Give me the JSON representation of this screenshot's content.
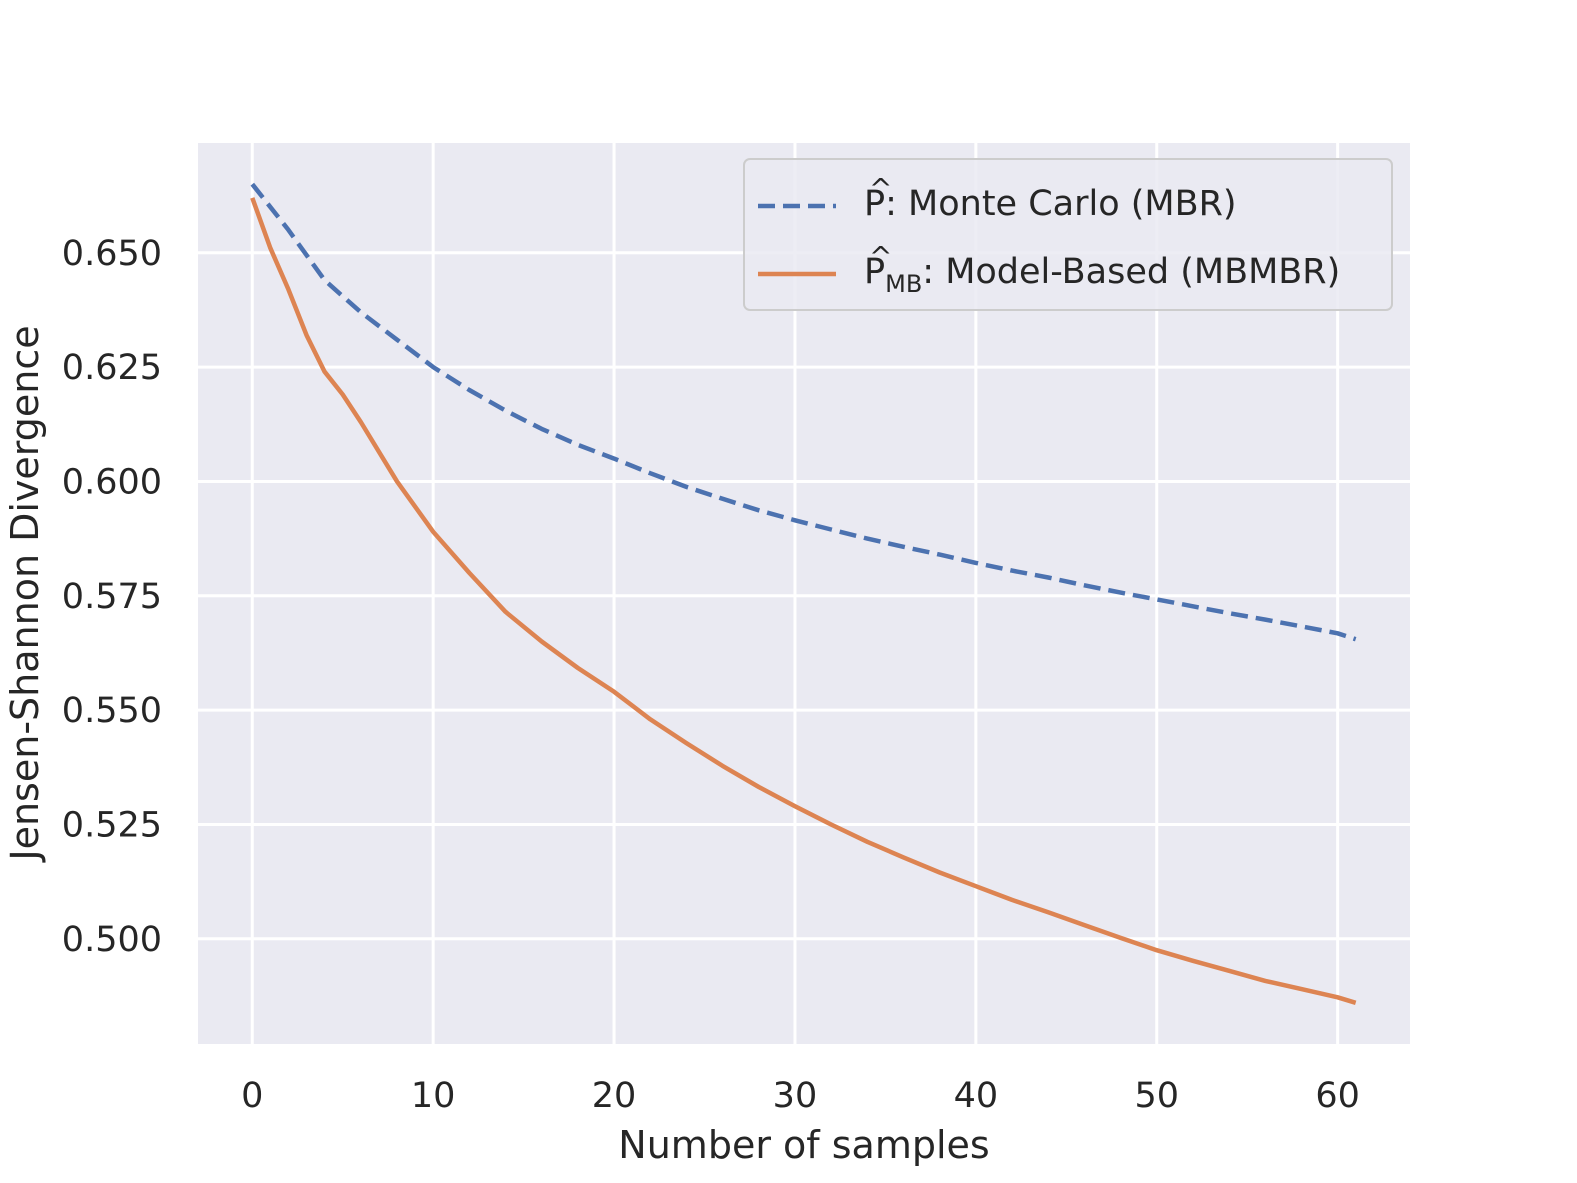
{
  "chart_data": {
    "type": "line",
    "xlabel": "Number of samples",
    "ylabel": "Jensen-Shannon Divergence",
    "xlim": [
      -3,
      64
    ],
    "ylim": [
      0.477,
      0.674
    ],
    "xticks": [
      0,
      10,
      20,
      30,
      40,
      50,
      60
    ],
    "yticks": [
      0.5,
      0.525,
      0.55,
      0.575,
      0.6,
      0.625,
      0.65
    ],
    "xtick_labels": [
      "0",
      "10",
      "20",
      "30",
      "40",
      "50",
      "60"
    ],
    "ytick_labels": [
      "0.500",
      "0.525",
      "0.550",
      "0.575",
      "0.600",
      "0.625",
      "0.650"
    ],
    "grid": true,
    "legend_position": "top-right",
    "background": "#eaeaf2",
    "series": [
      {
        "name": "P: Monte Carlo (MBR)",
        "legend_hat": "^",
        "legend_main": "P",
        "legend_sub": "",
        "legend_rest": ": Monte Carlo (MBR)",
        "color": "#4c72b0",
        "style": "dashed",
        "x": [
          0,
          2,
          4,
          6,
          8,
          10,
          12,
          14,
          16,
          18,
          20,
          22,
          24,
          26,
          28,
          30,
          32,
          34,
          36,
          38,
          40,
          42,
          44,
          46,
          48,
          50,
          52,
          54,
          56,
          58,
          60,
          61
        ],
        "y": [
          0.665,
          0.655,
          0.644,
          0.637,
          0.631,
          0.625,
          0.62,
          0.6155,
          0.6115,
          0.608,
          0.605,
          0.6018,
          0.5988,
          0.5962,
          0.5937,
          0.5915,
          0.5895,
          0.5875,
          0.5857,
          0.584,
          0.5822,
          0.5805,
          0.579,
          0.5773,
          0.5757,
          0.5742,
          0.5727,
          0.5712,
          0.5698,
          0.5683,
          0.5668,
          0.5655
        ]
      },
      {
        "name": "PMB: Model-Based (MBMBR)",
        "legend_hat": "^",
        "legend_main": "P",
        "legend_sub": "MB",
        "legend_rest": ": Model-Based (MBMBR)",
        "color": "#dd8452",
        "style": "solid",
        "x": [
          0,
          1,
          2,
          3,
          4,
          5,
          6,
          8,
          10,
          12,
          14,
          16,
          18,
          20,
          22,
          24,
          26,
          28,
          30,
          32,
          34,
          36,
          38,
          40,
          42,
          44,
          46,
          48,
          50,
          52,
          54,
          56,
          58,
          60,
          61
        ],
        "y": [
          0.662,
          0.651,
          0.642,
          0.632,
          0.624,
          0.619,
          0.613,
          0.6,
          0.589,
          0.58,
          0.5715,
          0.565,
          0.5592,
          0.554,
          0.548,
          0.5428,
          0.5378,
          0.5332,
          0.529,
          0.525,
          0.5212,
          0.5178,
          0.5145,
          0.5115,
          0.5085,
          0.5058,
          0.503,
          0.5002,
          0.4975,
          0.4952,
          0.493,
          0.4908,
          0.489,
          0.4872,
          0.486
        ]
      }
    ]
  }
}
